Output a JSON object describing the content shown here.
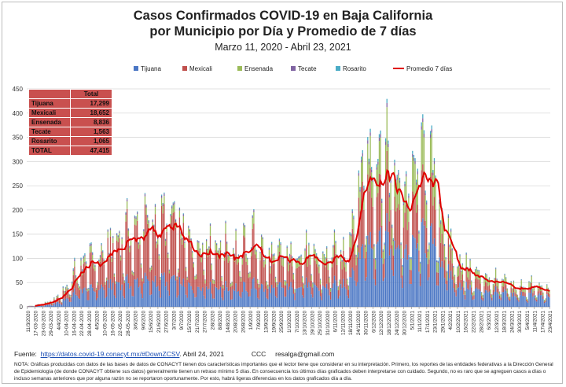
{
  "title": {
    "line1": "Casos Confirmados COVID-19 en Baja California",
    "line2": "por Municipio por Día y Promedio de 7 días",
    "subtitle": "Marzo 11, 2020 - Abril 23, 2021"
  },
  "colors": {
    "Tijuana": "#4a76c4",
    "Mexicali": "#c0504d",
    "Ensenada": "#9bbb59",
    "Tecate": "#8064a2",
    "Rosarito": "#4bacc6",
    "avg": "#e00000",
    "grid": "#d9d9d9",
    "table_bg": "#c9504f"
  },
  "totals_table": {
    "header": "Total",
    "rows": [
      {
        "name": "Tijuana",
        "value": "17,299"
      },
      {
        "name": "Mexicali",
        "value": "18,652"
      },
      {
        "name": "Ensenada",
        "value": "8,836"
      },
      {
        "name": "Tecate",
        "value": "1,563"
      },
      {
        "name": "Rosarito",
        "value": "1,065"
      },
      {
        "name": "TOTAL",
        "value": "47,415"
      }
    ]
  },
  "footer": {
    "source_label": "Fuente:",
    "source_link": "https://datos.covid-19.conacyt.mx/#DownZCSV",
    "source_date": ". Abril 24, 2021",
    "ccc": "CCC",
    "email": "resalga@gmail.com",
    "note": "NOTA: Gráficas producidas con datos de las bases de datos de CONACYT tienen dos características importantes que el lector tiene que considerar en su interpretación. Primero, los reportes de las entidades federativas a la Dirección General de Epidemiología (de donde CONACYT obtiene sus datos) generalmente tienen un retraso mínimo 5 días. En consecuencia los últimos días graficados deben interpretarse con cuidado. Segundo, no es raro que se agreguen casos a días o incluso semanas anteriores que por alguna razón no se reportaron oportunamente. Por esto, habrá ligeras diferencias en los datos graficados día a día."
  },
  "chart_data": {
    "type": "bar",
    "stacked": true,
    "start_date": "11/3/2020",
    "end_date": "23/4/2021",
    "ylim": [
      0,
      450
    ],
    "yticks": [
      0,
      50,
      100,
      150,
      200,
      250,
      300,
      350,
      400,
      450
    ],
    "grid": true,
    "legend_position": "top",
    "series": [
      {
        "name": "Tijuana",
        "kind": "bar"
      },
      {
        "name": "Mexicali",
        "kind": "bar"
      },
      {
        "name": "Ensenada",
        "kind": "bar"
      },
      {
        "name": "Tecate",
        "kind": "bar"
      },
      {
        "name": "Rosarito",
        "kind": "bar"
      },
      {
        "name": "Promedio 7 días",
        "kind": "line"
      }
    ],
    "x_tick_labels": [
      "11/3/2020",
      "17-03-2020",
      "23-03-2020",
      "29-03-2020",
      "4/4/2020",
      "10-04-2020",
      "16-04-2020",
      "22-04-2020",
      "28-04-2020",
      "4/5/2020",
      "10-05-2020",
      "16-05-2020",
      "22-05-2020",
      "28-05-2020",
      "3/6/2020",
      "9/6/2020",
      "15/6/2020",
      "21/6/2020",
      "27/6/2020",
      "3/7/2020",
      "9/7/2020",
      "15/7/2020",
      "21/7/2020",
      "27/7/2020",
      "2/8/2020",
      "8/8/2020",
      "14/8/2020",
      "20/8/2020",
      "26/8/2020",
      "1/9/2020",
      "7/9/2020",
      "13/9/2020",
      "19/9/2020",
      "25/9/2020",
      "1/10/2020",
      "7/10/2020",
      "13/10/2020",
      "19/10/2020",
      "25/10/2020",
      "31/10/2020",
      "6/11/2020",
      "12/11/2020",
      "18/11/2020",
      "24/11/2020",
      "30/11/2020",
      "6/12/2020",
      "12/12/2020",
      "18/12/2020",
      "24/12/2020",
      "30/12/2020",
      "5/1/2021",
      "11/1/2021",
      "17/1/2021",
      "23/1/2021",
      "29/1/2021",
      "4/2/2021",
      "10/2/2021",
      "16/2/2021",
      "22/2/2021",
      "28/2/2021",
      "6/3/2021",
      "12/3/2021",
      "18/3/2021",
      "24/3/2021",
      "30/3/2021",
      "5/4/2021",
      "11/4/2021",
      "17/4/2021",
      "23/4/2021"
    ],
    "weekly_totals_approx": [
      1,
      3,
      6,
      10,
      18,
      35,
      60,
      80,
      88,
      90,
      100,
      118,
      125,
      145,
      140,
      155,
      155,
      160,
      162,
      158,
      140,
      125,
      120,
      135,
      120,
      115,
      115,
      110,
      108,
      135,
      120,
      95,
      90,
      100,
      95,
      105,
      110,
      95,
      90,
      95,
      100,
      95,
      130,
      220,
      280,
      285,
      280,
      275,
      240,
      215,
      215,
      255,
      270,
      235,
      175,
      120,
      90,
      80,
      65,
      58,
      58,
      50,
      45,
      40,
      38,
      42,
      40,
      35,
      30
    ],
    "weekly_share": {
      "Tijuana": [
        0.4,
        0.4,
        0.4,
        0.4,
        0.4,
        0.4,
        0.38,
        0.36,
        0.35,
        0.35,
        0.35,
        0.34,
        0.32,
        0.3,
        0.3,
        0.3,
        0.3,
        0.3,
        0.3,
        0.3,
        0.3,
        0.3,
        0.3,
        0.3,
        0.3,
        0.3,
        0.3,
        0.3,
        0.3,
        0.3,
        0.32,
        0.34,
        0.36,
        0.38,
        0.38,
        0.38,
        0.38,
        0.38,
        0.38,
        0.38,
        0.4,
        0.4,
        0.4,
        0.4,
        0.42,
        0.44,
        0.45,
        0.45,
        0.45,
        0.46,
        0.46,
        0.46,
        0.46,
        0.46,
        0.46,
        0.46,
        0.46,
        0.46,
        0.48,
        0.5,
        0.52,
        0.52,
        0.54,
        0.55,
        0.55,
        0.55,
        0.55,
        0.55,
        0.55
      ],
      "Mexicali": [
        0.4,
        0.4,
        0.4,
        0.4,
        0.4,
        0.4,
        0.44,
        0.48,
        0.5,
        0.52,
        0.54,
        0.56,
        0.58,
        0.6,
        0.6,
        0.6,
        0.6,
        0.6,
        0.6,
        0.6,
        0.6,
        0.58,
        0.55,
        0.55,
        0.55,
        0.55,
        0.55,
        0.55,
        0.55,
        0.55,
        0.52,
        0.48,
        0.45,
        0.43,
        0.42,
        0.42,
        0.42,
        0.42,
        0.42,
        0.42,
        0.4,
        0.4,
        0.4,
        0.4,
        0.36,
        0.33,
        0.3,
        0.3,
        0.3,
        0.29,
        0.28,
        0.28,
        0.28,
        0.28,
        0.28,
        0.28,
        0.28,
        0.28,
        0.26,
        0.24,
        0.22,
        0.22,
        0.2,
        0.2,
        0.2,
        0.2,
        0.2,
        0.2,
        0.2
      ],
      "Ensenada": [
        0.12,
        0.12,
        0.12,
        0.12,
        0.12,
        0.12,
        0.11,
        0.1,
        0.1,
        0.09,
        0.08,
        0.07,
        0.07,
        0.07,
        0.07,
        0.07,
        0.07,
        0.07,
        0.07,
        0.07,
        0.07,
        0.09,
        0.12,
        0.12,
        0.12,
        0.12,
        0.12,
        0.12,
        0.12,
        0.12,
        0.13,
        0.14,
        0.15,
        0.15,
        0.16,
        0.16,
        0.16,
        0.16,
        0.16,
        0.16,
        0.16,
        0.16,
        0.16,
        0.16,
        0.18,
        0.19,
        0.21,
        0.21,
        0.21,
        0.21,
        0.22,
        0.22,
        0.22,
        0.22,
        0.22,
        0.22,
        0.22,
        0.22,
        0.22,
        0.22,
        0.22,
        0.22,
        0.22,
        0.21,
        0.21,
        0.21,
        0.21,
        0.21,
        0.21
      ],
      "Tecate": [
        0.04,
        0.04,
        0.04,
        0.04,
        0.04,
        0.04,
        0.04,
        0.03,
        0.03,
        0.02,
        0.02,
        0.02,
        0.02,
        0.02,
        0.02,
        0.02,
        0.02,
        0.02,
        0.02,
        0.02,
        0.02,
        0.02,
        0.02,
        0.02,
        0.02,
        0.02,
        0.02,
        0.02,
        0.02,
        0.02,
        0.02,
        0.02,
        0.02,
        0.02,
        0.02,
        0.02,
        0.02,
        0.02,
        0.02,
        0.02,
        0.02,
        0.02,
        0.02,
        0.02,
        0.02,
        0.02,
        0.02,
        0.02,
        0.02,
        0.02,
        0.02,
        0.02,
        0.02,
        0.02,
        0.02,
        0.02,
        0.02,
        0.02,
        0.02,
        0.02,
        0.02,
        0.02,
        0.02,
        0.02,
        0.02,
        0.02,
        0.02,
        0.02,
        0.02
      ],
      "Rosarito": [
        0.04,
        0.04,
        0.04,
        0.04,
        0.04,
        0.04,
        0.03,
        0.03,
        0.02,
        0.02,
        0.01,
        0.01,
        0.01,
        0.01,
        0.01,
        0.01,
        0.01,
        0.01,
        0.01,
        0.01,
        0.01,
        0.01,
        0.01,
        0.01,
        0.01,
        0.01,
        0.01,
        0.01,
        0.01,
        0.01,
        0.01,
        0.02,
        0.02,
        0.02,
        0.02,
        0.02,
        0.02,
        0.02,
        0.02,
        0.02,
        0.02,
        0.02,
        0.02,
        0.02,
        0.02,
        0.02,
        0.02,
        0.02,
        0.02,
        0.02,
        0.02,
        0.02,
        0.02,
        0.02,
        0.02,
        0.02,
        0.02,
        0.02,
        0.02,
        0.02,
        0.02,
        0.02,
        0.02,
        0.02,
        0.02,
        0.02,
        0.02,
        0.02,
        0.02
      ]
    }
  }
}
